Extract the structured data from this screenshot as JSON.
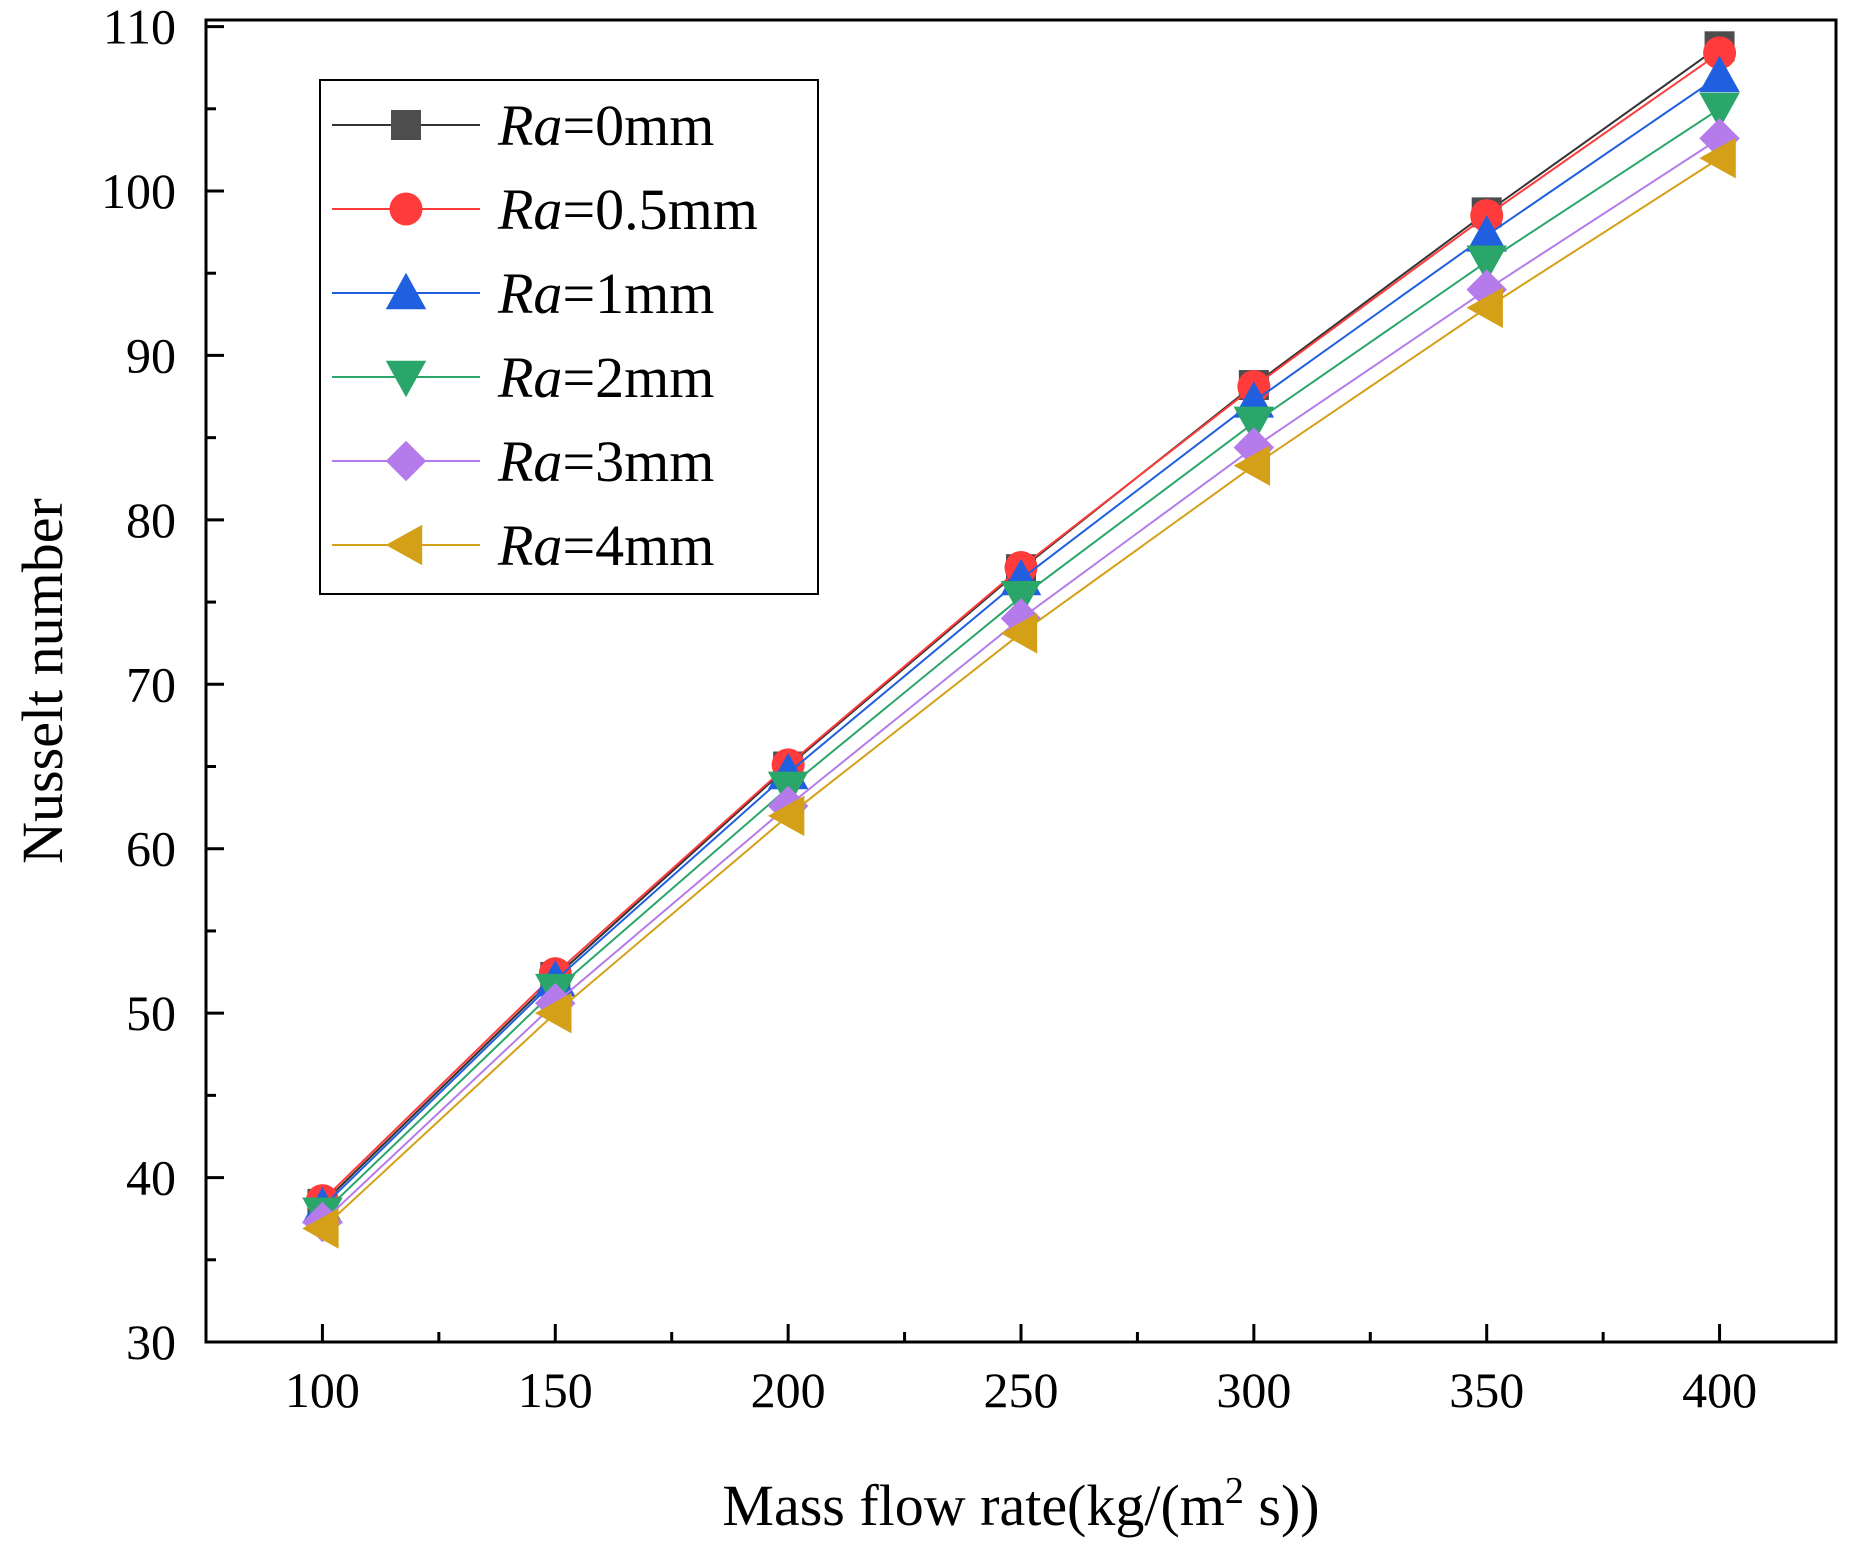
{
  "chart_data": {
    "type": "line",
    "title": "",
    "xlabel": "Mass flow rate(kg/(m",
    "xlabel_sup": "2",
    "xlabel_tail": " s))",
    "ylabel": "Nusselt number",
    "xlim": [
      75,
      425
    ],
    "ylim": [
      30,
      110.4
    ],
    "x": [
      100,
      150,
      200,
      250,
      300,
      350,
      400
    ],
    "xticks": [
      100,
      150,
      200,
      250,
      300,
      350,
      400
    ],
    "yticks": [
      30,
      40,
      50,
      60,
      70,
      80,
      90,
      100,
      110
    ],
    "grid": false,
    "legend_position": "top-left",
    "series": [
      {
        "name_italic": "Ra",
        "name_rest": "=0mm",
        "marker": "square",
        "color": "#4d4d4d",
        "line_color": "#333333",
        "values": [
          38.4,
          52.2,
          65.0,
          77.0,
          88.2,
          98.7,
          108.8
        ]
      },
      {
        "name_italic": "Ra",
        "name_rest": "=0.5mm",
        "marker": "circle",
        "color": "#ff3b3b",
        "line_color": "#ff3b3b",
        "values": [
          38.6,
          52.4,
          65.1,
          77.1,
          88.1,
          98.5,
          108.4
        ]
      },
      {
        "name_italic": "Ra",
        "name_rest": "=1mm",
        "marker": "triangle-up",
        "color": "#1f5fe0",
        "line_color": "#1f5fe0",
        "values": [
          38.2,
          52.0,
          64.6,
          76.4,
          87.2,
          97.3,
          107.0
        ]
      },
      {
        "name_italic": "Ra",
        "name_rest": "=2mm",
        "marker": "triangle-down",
        "color": "#2aa66a",
        "line_color": "#2aa66a",
        "values": [
          37.8,
          51.4,
          63.7,
          75.3,
          85.9,
          95.7,
          105.0
        ]
      },
      {
        "name_italic": "Ra",
        "name_rest": "=3mm",
        "marker": "diamond",
        "color": "#b57bea",
        "line_color": "#b57bea",
        "values": [
          37.3,
          50.6,
          62.6,
          74.0,
          84.4,
          94.0,
          103.2
        ]
      },
      {
        "name_italic": "Ra",
        "name_rest": "=4mm",
        "marker": "triangle-left",
        "color": "#d4a017",
        "line_color": "#d4a017",
        "values": [
          36.9,
          50.0,
          62.0,
          73.1,
          83.3,
          92.9,
          102.0
        ]
      }
    ]
  }
}
